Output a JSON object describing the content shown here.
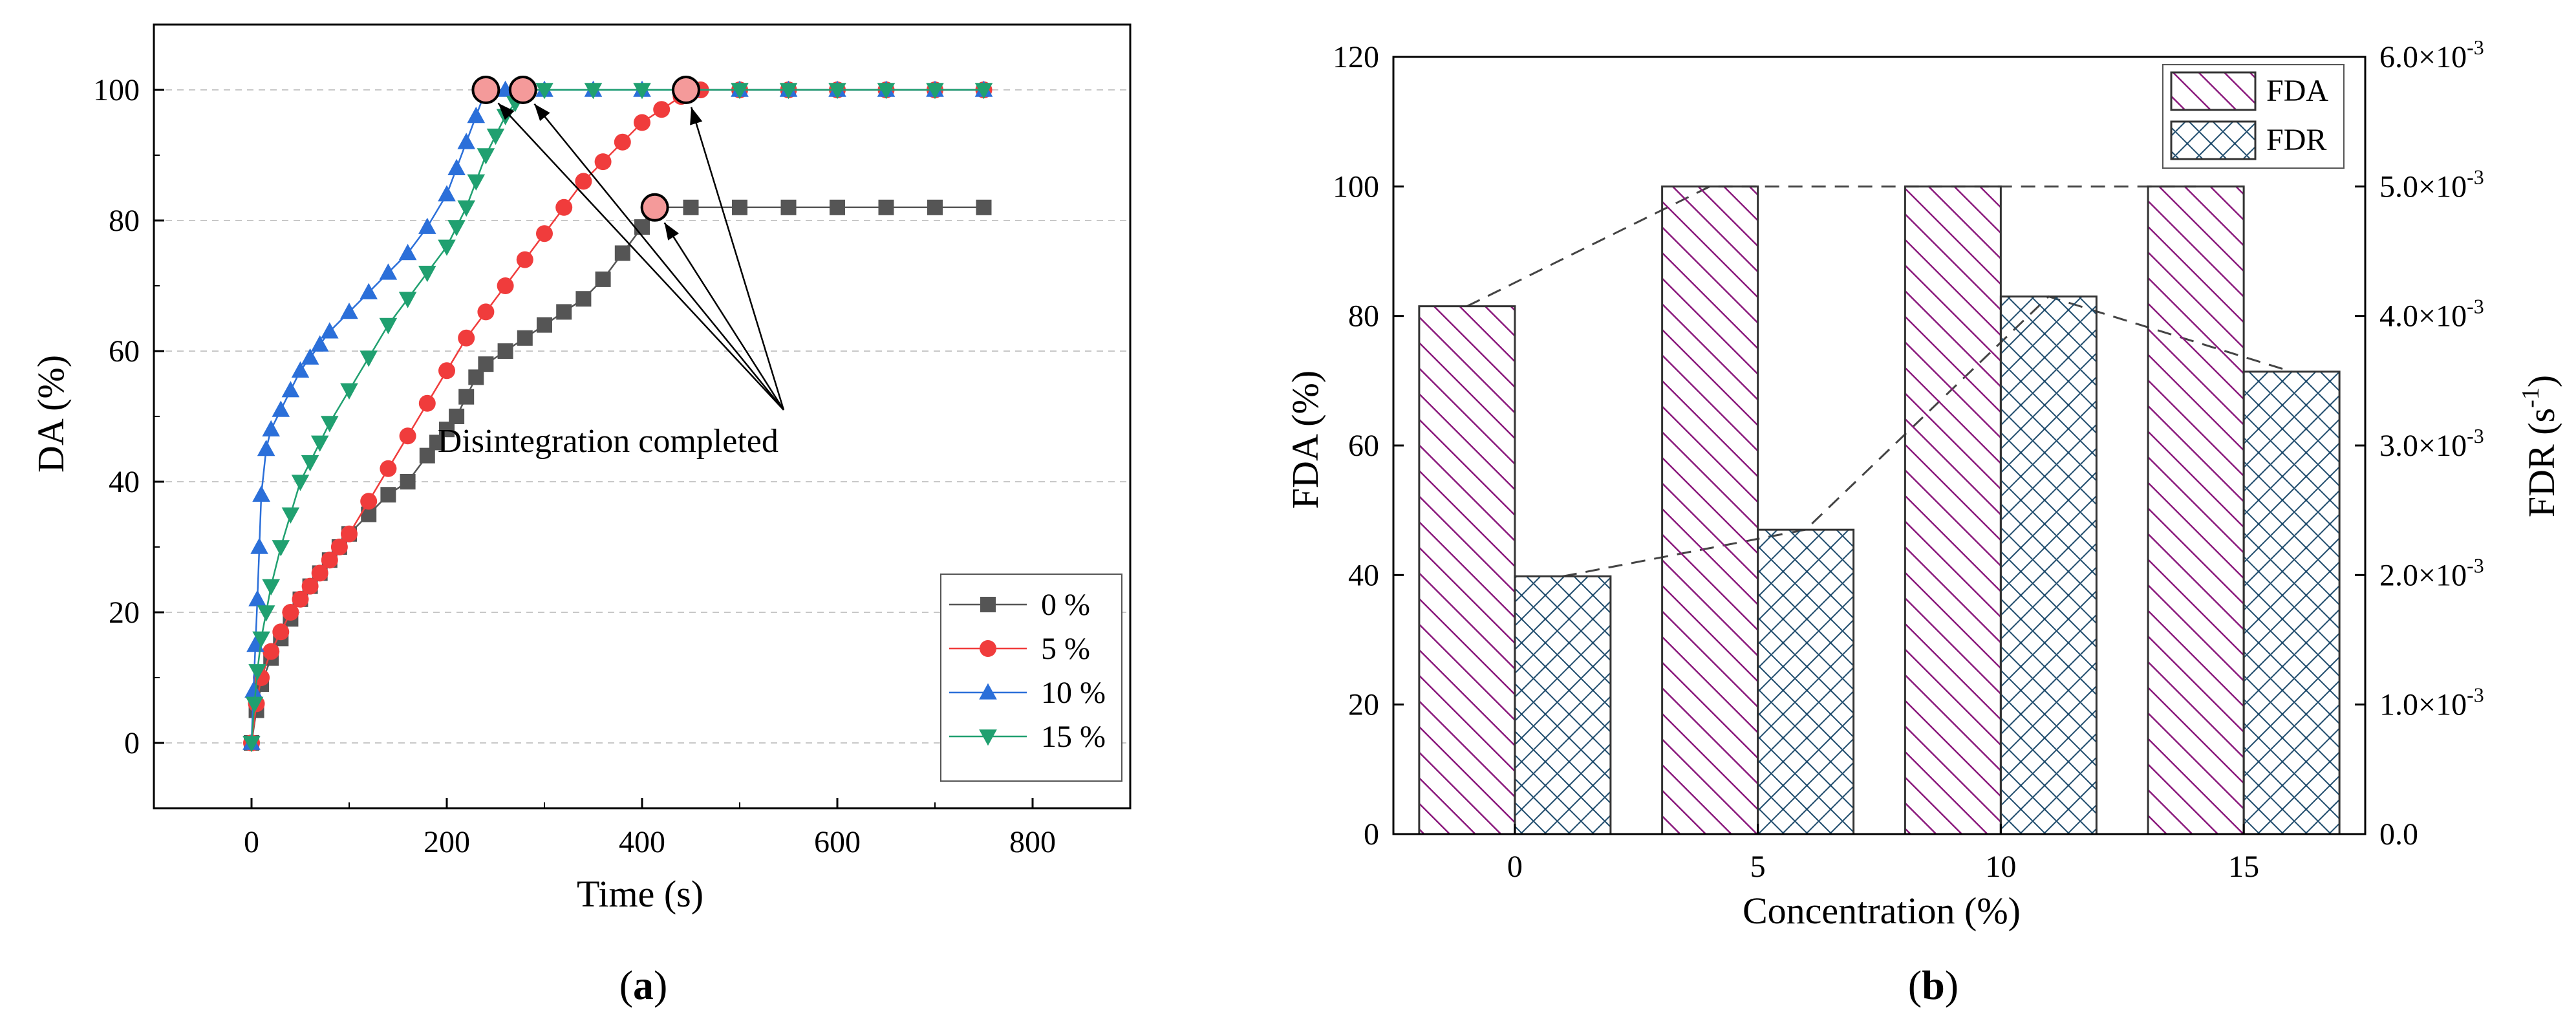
{
  "chart_data": [
    {
      "panel_label": "a",
      "type": "line",
      "title": "",
      "xlabel": "Time (s)",
      "ylabel": "DA (%)",
      "xlim": [
        -100,
        900
      ],
      "ylim": [
        -10,
        110
      ],
      "xticks": [
        0,
        200,
        400,
        600,
        800
      ],
      "yticks": [
        0,
        20,
        40,
        60,
        80,
        100
      ],
      "grid": "horizontal dashed",
      "legend_position": "bottom-right",
      "series": [
        {
          "name": "0 %",
          "color": "#555555",
          "marker": "square",
          "x": [
            0,
            5,
            10,
            20,
            30,
            40,
            50,
            60,
            70,
            80,
            90,
            100,
            120,
            140,
            160,
            180,
            190,
            200,
            210,
            220,
            230,
            240,
            260,
            280,
            300,
            320,
            340,
            360,
            380,
            400,
            410,
            450,
            500,
            550,
            600,
            650,
            700,
            750
          ],
          "y": [
            0,
            5,
            9,
            13,
            16,
            19,
            22,
            24,
            26,
            28,
            30,
            32,
            35,
            38,
            40,
            44,
            46,
            48,
            50,
            53,
            56,
            58,
            60,
            62,
            64,
            66,
            68,
            71,
            75,
            79,
            82,
            82,
            82,
            82,
            82,
            82,
            82,
            82
          ]
        },
        {
          "name": "5 %",
          "color": "#f03c3c",
          "marker": "circle",
          "x": [
            0,
            5,
            10,
            20,
            30,
            40,
            50,
            60,
            70,
            80,
            90,
            100,
            120,
            140,
            160,
            180,
            200,
            220,
            240,
            260,
            280,
            300,
            320,
            340,
            360,
            380,
            400,
            420,
            440,
            460,
            500,
            550,
            600,
            650,
            700,
            750
          ],
          "y": [
            0,
            6,
            10,
            14,
            17,
            20,
            22,
            24,
            26,
            28,
            30,
            32,
            37,
            42,
            47,
            52,
            57,
            62,
            66,
            70,
            74,
            78,
            82,
            86,
            89,
            92,
            95,
            97,
            99,
            100,
            100,
            100,
            100,
            100,
            100,
            100
          ]
        },
        {
          "name": "10 %",
          "color": "#2b6fd9",
          "marker": "triangle-up",
          "x": [
            0,
            2,
            4,
            6,
            8,
            10,
            15,
            20,
            30,
            40,
            50,
            60,
            70,
            80,
            100,
            120,
            140,
            160,
            180,
            200,
            210,
            220,
            230,
            240,
            260,
            300,
            350,
            400,
            450,
            500,
            550,
            600,
            650,
            700,
            750
          ],
          "y": [
            0,
            8,
            15,
            22,
            30,
            38,
            45,
            48,
            51,
            54,
            57,
            59,
            61,
            63,
            66,
            69,
            72,
            75,
            79,
            84,
            88,
            92,
            96,
            100,
            100,
            100,
            100,
            100,
            100,
            100,
            100,
            100,
            100,
            100,
            100
          ]
        },
        {
          "name": "15 %",
          "color": "#20a070",
          "marker": "triangle-down",
          "x": [
            0,
            3,
            6,
            10,
            15,
            20,
            30,
            40,
            50,
            60,
            70,
            80,
            100,
            120,
            140,
            160,
            180,
            200,
            210,
            220,
            230,
            240,
            250,
            260,
            270,
            280,
            300,
            350,
            400,
            450,
            500,
            550,
            600,
            650,
            700,
            750
          ],
          "y": [
            0,
            6,
            11,
            16,
            20,
            24,
            30,
            35,
            40,
            43,
            46,
            49,
            54,
            59,
            64,
            68,
            72,
            76,
            79,
            82,
            86,
            90,
            93,
            96,
            98,
            100,
            100,
            100,
            100,
            100,
            100,
            100,
            100,
            100,
            100,
            100
          ]
        }
      ],
      "completion_points": [
        {
          "x": 240,
          "y": 100
        },
        {
          "x": 278,
          "y": 100
        },
        {
          "x": 445,
          "y": 100
        },
        {
          "x": 413,
          "y": 82
        }
      ],
      "annotation_anchor": {
        "x": 545,
        "y": 51
      },
      "annotation": "Disintegration completed"
    },
    {
      "panel_label": "b",
      "type": "bar",
      "title": "",
      "xlabel": "Concentration (%)",
      "ylabel_left": "FDA (%)",
      "ylabel_right_main": "FDR (s",
      "ylabel_right_sup": "-1",
      "ylabel_right_end": ")",
      "categories": [
        "0",
        "5",
        "10",
        "15"
      ],
      "ylim_left": [
        0,
        120
      ],
      "yticks_left": [
        0,
        20,
        40,
        60,
        80,
        100,
        120
      ],
      "ylim_right": [
        0,
        0.006
      ],
      "yticks_right_labels": [
        "0.0",
        "1.0×10",
        "2.0×10",
        "3.0×10",
        "4.0×10",
        "5.0×10",
        "6.0×10"
      ],
      "yticks_right_exp": [
        "",
        "-3",
        "-3",
        "-3",
        "-3",
        "-3",
        "-3"
      ],
      "legend_position": "top-right",
      "series": [
        {
          "name": "FDA",
          "axis": "left",
          "color": "#8b1a7d",
          "hatch": "diagonal",
          "values": [
            81.5,
            100,
            100,
            100
          ]
        },
        {
          "name": "FDR",
          "axis": "right",
          "color": "#1d4a6b",
          "hatch": "crosshatch",
          "values": [
            0.00199,
            0.00235,
            0.00415,
            0.00357
          ]
        }
      ]
    }
  ]
}
